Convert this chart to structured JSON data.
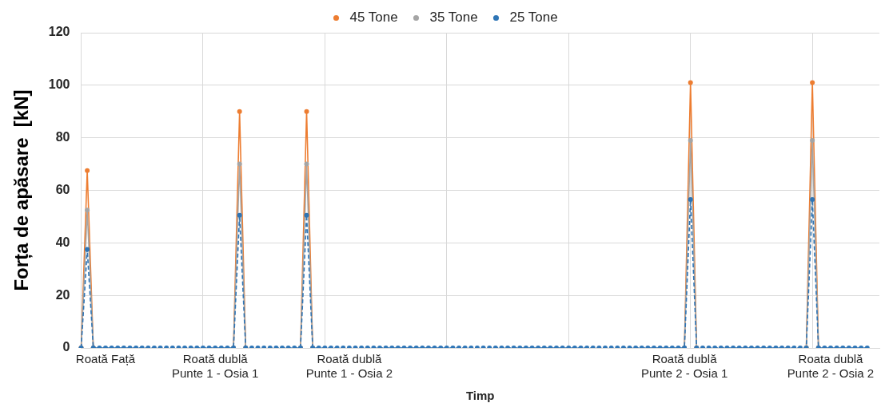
{
  "chart_data": {
    "type": "line",
    "xlabel": "Timp",
    "ylabel": "Forța de apăsare  [kN]",
    "categories": [
      null,
      null,
      null,
      null,
      "Roată Față",
      null,
      null,
      null,
      null,
      null,
      null,
      null,
      null,
      null,
      null,
      null,
      null,
      null,
      null,
      null,
      null,
      null,
      "Roată dublă\nPunte 1 - Osia 1",
      null,
      null,
      null,
      null,
      null,
      null,
      null,
      null,
      null,
      null,
      null,
      null,
      null,
      null,
      null,
      null,
      null,
      null,
      null,
      null,
      null,
      "Roată dublă\nPunte 1 - Osia 2",
      null,
      null,
      null,
      null,
      null,
      null,
      null,
      null,
      null,
      null,
      null,
      null,
      null,
      null,
      null,
      null,
      null,
      null,
      null,
      null,
      null,
      null,
      null,
      null,
      null,
      null,
      null,
      null,
      null,
      null,
      null,
      null,
      null,
      null,
      null,
      null,
      null,
      null,
      null,
      null,
      null,
      null,
      null,
      null,
      null,
      null,
      null,
      null,
      null,
      null,
      null,
      null,
      null,
      null,
      "Roată dublă\nPunte 2 - Osia 1",
      null,
      null,
      null,
      null,
      null,
      null,
      null,
      null,
      null,
      null,
      null,
      null,
      null,
      null,
      null,
      null,
      null,
      null,
      null,
      null,
      null,
      null,
      null,
      "Roata dublă\nPunte 2 - Osia 2",
      null,
      null,
      null,
      null,
      null,
      null,
      null,
      null
    ],
    "series": [
      {
        "name": "45 Tone",
        "color": "#ed7d31",
        "line_style": "solid",
        "values": [
          0,
          67.5,
          0,
          null,
          null,
          null,
          null,
          null,
          null,
          null,
          null,
          null,
          null,
          null,
          null,
          null,
          null,
          null,
          null,
          null,
          null,
          null,
          null,
          null,
          null,
          0,
          90,
          0,
          null,
          null,
          null,
          null,
          null,
          null,
          null,
          null,
          0,
          90,
          0,
          null,
          null,
          null,
          null,
          null,
          null,
          null,
          null,
          null,
          null,
          null,
          null,
          null,
          null,
          null,
          null,
          null,
          null,
          null,
          null,
          null,
          null,
          null,
          null,
          null,
          null,
          null,
          null,
          null,
          null,
          null,
          null,
          null,
          null,
          null,
          null,
          null,
          null,
          null,
          null,
          null,
          null,
          null,
          null,
          null,
          null,
          null,
          null,
          null,
          null,
          null,
          null,
          null,
          null,
          null,
          null,
          null,
          null,
          null,
          null,
          0,
          101,
          0,
          null,
          null,
          null,
          null,
          null,
          null,
          null,
          null,
          null,
          null,
          null,
          null,
          null,
          null,
          null,
          null,
          null,
          0,
          101,
          0,
          null,
          null,
          null,
          null,
          null,
          null,
          null,
          null,
          null,
          null
        ]
      },
      {
        "name": "35 Tone",
        "color": "#a5a5a5",
        "line_style": "solid",
        "values": [
          0,
          52.5,
          0,
          null,
          null,
          null,
          null,
          null,
          null,
          null,
          null,
          null,
          null,
          null,
          null,
          null,
          null,
          null,
          null,
          null,
          null,
          null,
          null,
          null,
          null,
          0,
          70,
          0,
          null,
          null,
          null,
          null,
          null,
          null,
          null,
          null,
          0,
          70,
          0,
          null,
          null,
          null,
          null,
          null,
          null,
          null,
          null,
          null,
          null,
          null,
          null,
          null,
          null,
          null,
          null,
          null,
          null,
          null,
          null,
          null,
          null,
          null,
          null,
          null,
          null,
          null,
          null,
          null,
          null,
          null,
          null,
          null,
          null,
          null,
          null,
          null,
          null,
          null,
          null,
          null,
          null,
          null,
          null,
          null,
          null,
          null,
          null,
          null,
          null,
          null,
          null,
          null,
          null,
          null,
          null,
          null,
          null,
          null,
          null,
          0,
          79,
          0,
          null,
          null,
          null,
          null,
          null,
          null,
          null,
          null,
          null,
          null,
          null,
          null,
          null,
          null,
          null,
          null,
          null,
          0,
          79,
          0,
          null,
          null,
          null,
          null,
          null,
          null,
          null,
          null,
          null,
          null
        ]
      },
      {
        "name": "25 Tone",
        "color": "#2e75b6",
        "line_style": "dashed",
        "values": [
          0,
          37.5,
          0,
          0,
          0,
          0,
          0,
          0,
          0,
          0,
          0,
          0,
          0,
          0,
          0,
          0,
          0,
          0,
          0,
          0,
          0,
          0,
          0,
          0,
          0,
          0,
          50.5,
          0,
          0,
          0,
          0,
          0,
          0,
          0,
          0,
          0,
          0,
          50.5,
          0,
          0,
          0,
          0,
          0,
          0,
          0,
          0,
          0,
          0,
          0,
          0,
          0,
          0,
          0,
          0,
          0,
          0,
          0,
          0,
          0,
          0,
          0,
          0,
          0,
          0,
          0,
          0,
          0,
          0,
          0,
          0,
          0,
          0,
          0,
          0,
          0,
          0,
          0,
          0,
          0,
          0,
          0,
          0,
          0,
          0,
          0,
          0,
          0,
          0,
          0,
          0,
          0,
          0,
          0,
          0,
          0,
          0,
          0,
          0,
          0,
          0,
          56.5,
          0,
          0,
          0,
          0,
          0,
          0,
          0,
          0,
          0,
          0,
          0,
          0,
          0,
          0,
          0,
          0,
          0,
          0,
          0,
          56.5,
          0,
          0,
          0,
          0,
          0,
          0,
          0,
          0,
          0,
          null,
          null
        ]
      }
    ],
    "ylim": [
      0,
      120
    ],
    "yticks": [
      0,
      20,
      40,
      60,
      80,
      100,
      120
    ],
    "grid": true,
    "legend": "top",
    "marker": "circle"
  }
}
